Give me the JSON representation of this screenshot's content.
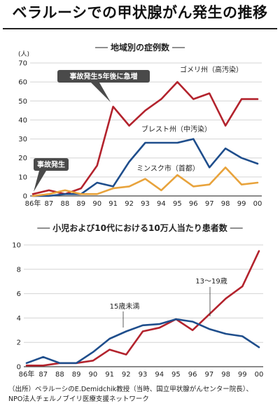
{
  "header": {
    "title": "ベラルーシでの甲状腺がん発生の推移"
  },
  "chart_data": [
    {
      "type": "line",
      "title": "地域別の症例数",
      "unit": "(人)",
      "categories": [
        "86年",
        "87",
        "88",
        "89",
        "90",
        "91",
        "92",
        "93",
        "94",
        "95",
        "96",
        "97",
        "98",
        "99",
        "00"
      ],
      "ylim": [
        0,
        70
      ],
      "yticks": [
        0,
        10,
        20,
        30,
        40,
        50,
        60,
        70
      ],
      "grid": "horizontal",
      "series": [
        {
          "name": "ゴメリ州（高汚染）",
          "color": "#b3232d",
          "values": [
            1,
            3,
            1,
            4,
            16,
            47,
            37,
            45,
            51,
            60,
            51,
            54,
            37,
            51,
            51
          ]
        },
        {
          "name": "ブレスト州（中汚染）",
          "color": "#1f4e8c",
          "values": [
            0,
            0,
            1,
            1,
            7,
            5,
            18,
            28,
            28,
            28,
            30,
            15,
            25,
            20,
            17
          ]
        },
        {
          "name": "ミンスク市（首都）",
          "color": "#e8a33c",
          "values": [
            0,
            1,
            3,
            1,
            1,
            4,
            5,
            9,
            3,
            11,
            5,
            6,
            15,
            6,
            7
          ]
        }
      ],
      "annotations": [
        "事故発生5年後に急増",
        "事故発生"
      ]
    },
    {
      "type": "line",
      "title": "小児および10代における10万人当たり患者数",
      "categories": [
        "86年",
        "87",
        "88",
        "89",
        "90",
        "91",
        "92",
        "93",
        "94",
        "95",
        "96",
        "97",
        "98",
        "99",
        "00"
      ],
      "ylim": [
        0,
        10
      ],
      "yticks": [
        0,
        2,
        4,
        6,
        8,
        10
      ],
      "grid": "horizontal",
      "series": [
        {
          "name": "13〜19歳",
          "color": "#b3232d",
          "values": [
            0.1,
            0.1,
            0.3,
            0.3,
            0.5,
            1.4,
            1.0,
            2.9,
            3.2,
            3.9,
            3.0,
            4.3,
            5.6,
            6.6,
            9.5
          ]
        },
        {
          "name": "15歳未満",
          "color": "#1f4e8c",
          "values": [
            0.3,
            0.8,
            0.3,
            0.3,
            1.2,
            2.3,
            2.9,
            3.4,
            3.5,
            3.9,
            3.7,
            3.1,
            2.7,
            2.5,
            1.6
          ]
        }
      ]
    }
  ],
  "source": {
    "line1": "（出所）ベラルーシのE.Demidchik教授（当時、国立甲状腺がんセンター院長）、",
    "line2": "NPO法人チェルノブイリ医療支援ネットワーク"
  }
}
